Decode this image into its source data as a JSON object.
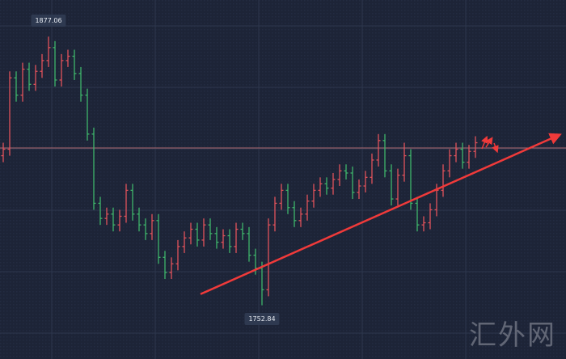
{
  "chart_data": {
    "type": "ohlc",
    "ylim": [
      1728,
      1894
    ],
    "grid": true,
    "up_color": "#e0525a",
    "down_color": "#3fb56b",
    "reference_line_color": "#b06a72",
    "reference_price": 1825.6,
    "annotations": {
      "high_label": "1877.06",
      "low_label": "1752.84",
      "trend_arrow_color": "#f03a3a",
      "trend_arrow_from_price": 1758,
      "trend_arrow_to_price": 1831
    },
    "bars": [
      [
        1822,
        1828,
        1819,
        1825
      ],
      [
        1825,
        1861,
        1822,
        1858
      ],
      [
        1858,
        1861,
        1847,
        1850
      ],
      [
        1850,
        1865,
        1847,
        1862
      ],
      [
        1862,
        1865,
        1852,
        1855
      ],
      [
        1855,
        1864,
        1852,
        1861
      ],
      [
        1861,
        1869,
        1858,
        1866
      ],
      [
        1866,
        1877.06,
        1863,
        1872
      ],
      [
        1872,
        1875,
        1854,
        1857
      ],
      [
        1857,
        1869,
        1854,
        1866
      ],
      [
        1866,
        1871,
        1863,
        1868
      ],
      [
        1868,
        1871,
        1857,
        1860
      ],
      [
        1860,
        1863,
        1847,
        1850
      ],
      [
        1850,
        1853,
        1829,
        1832
      ],
      [
        1832,
        1835,
        1797,
        1800
      ],
      [
        1800,
        1803,
        1790,
        1793
      ],
      [
        1793,
        1798,
        1790,
        1795
      ],
      [
        1795,
        1798,
        1787,
        1790
      ],
      [
        1790,
        1797,
        1787,
        1794
      ],
      [
        1794,
        1809,
        1791,
        1806
      ],
      [
        1806,
        1809,
        1792,
        1795
      ],
      [
        1795,
        1798,
        1787,
        1790
      ],
      [
        1790,
        1793,
        1783,
        1786
      ],
      [
        1786,
        1795,
        1783,
        1792
      ],
      [
        1792,
        1795,
        1772,
        1775
      ],
      [
        1775,
        1778,
        1765,
        1768
      ],
      [
        1768,
        1775,
        1765,
        1772
      ],
      [
        1772,
        1783,
        1769,
        1780
      ],
      [
        1780,
        1787,
        1777,
        1784
      ],
      [
        1784,
        1791,
        1781,
        1788
      ],
      [
        1788,
        1791,
        1780,
        1783
      ],
      [
        1783,
        1793,
        1780,
        1790
      ],
      [
        1790,
        1793,
        1783,
        1786
      ],
      [
        1786,
        1789,
        1779,
        1782
      ],
      [
        1782,
        1788,
        1779,
        1785
      ],
      [
        1785,
        1788,
        1777,
        1780
      ],
      [
        1780,
        1791,
        1777,
        1788
      ],
      [
        1788,
        1791,
        1783,
        1786
      ],
      [
        1786,
        1789,
        1773,
        1776
      ],
      [
        1776,
        1779,
        1767,
        1770
      ],
      [
        1770,
        1773,
        1752.84,
        1760
      ],
      [
        1760,
        1793,
        1757,
        1790
      ],
      [
        1790,
        1803,
        1787,
        1800
      ],
      [
        1800,
        1809,
        1797,
        1806
      ],
      [
        1806,
        1809,
        1795,
        1798
      ],
      [
        1798,
        1801,
        1789,
        1792
      ],
      [
        1792,
        1798,
        1789,
        1795
      ],
      [
        1795,
        1804,
        1792,
        1801
      ],
      [
        1801,
        1809,
        1798,
        1806
      ],
      [
        1806,
        1812,
        1803,
        1809
      ],
      [
        1809,
        1812,
        1804,
        1807
      ],
      [
        1807,
        1814,
        1804,
        1811
      ],
      [
        1811,
        1818,
        1808,
        1815
      ],
      [
        1815,
        1818,
        1811,
        1814
      ],
      [
        1814,
        1817,
        1802,
        1805
      ],
      [
        1805,
        1811,
        1802,
        1808
      ],
      [
        1808,
        1815,
        1805,
        1812
      ],
      [
        1812,
        1823,
        1809,
        1820
      ],
      [
        1820,
        1832,
        1817,
        1829
      ],
      [
        1829,
        1832,
        1812,
        1815
      ],
      [
        1815,
        1818,
        1799,
        1802
      ],
      [
        1802,
        1816,
        1799,
        1813
      ],
      [
        1813,
        1828,
        1810,
        1822
      ],
      [
        1822,
        1825,
        1797,
        1800
      ],
      [
        1800,
        1803,
        1787,
        1790
      ],
      [
        1790,
        1794,
        1787,
        1791
      ],
      [
        1791,
        1800,
        1788,
        1797
      ],
      [
        1797,
        1809,
        1794,
        1806
      ],
      [
        1806,
        1818,
        1803,
        1815
      ],
      [
        1815,
        1825,
        1812,
        1822
      ],
      [
        1822,
        1828,
        1819,
        1825
      ],
      [
        1825,
        1828,
        1816,
        1819
      ],
      [
        1819,
        1827,
        1816,
        1824
      ],
      [
        1824,
        1831,
        1821,
        1828
      ]
    ]
  },
  "watermark": "汇外网"
}
